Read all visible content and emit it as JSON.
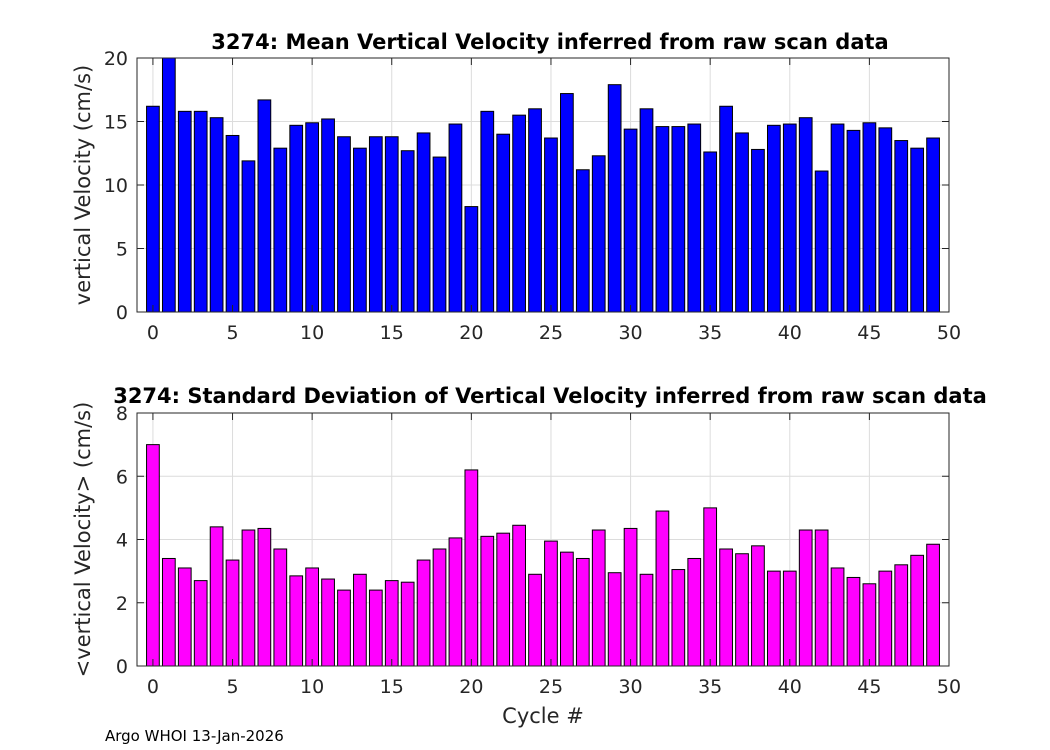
{
  "footer": "Argo WHOI 13-Jan-2026",
  "chart_data": [
    {
      "type": "bar",
      "title": "3274: Mean Vertical Velocity inferred from raw scan data",
      "xlabel": "",
      "ylabel": "vertical Velocity (cm/s)",
      "xlim": [
        -1,
        50
      ],
      "ylim": [
        0,
        20
      ],
      "xticks": [
        0,
        5,
        10,
        15,
        20,
        25,
        30,
        35,
        40,
        45,
        50
      ],
      "yticks": [
        0,
        5,
        10,
        15,
        20
      ],
      "grid": true,
      "color": "#0000ff",
      "x": [
        0,
        1,
        2,
        3,
        4,
        5,
        6,
        7,
        8,
        9,
        10,
        11,
        12,
        13,
        14,
        15,
        16,
        17,
        18,
        19,
        20,
        21,
        22,
        23,
        24,
        25,
        26,
        27,
        28,
        29,
        30,
        31,
        32,
        33,
        34,
        35,
        36,
        37,
        38,
        39,
        40,
        41,
        42,
        43,
        44,
        45,
        46,
        47,
        48,
        49
      ],
      "values": [
        16.2,
        20.0,
        15.8,
        15.8,
        15.3,
        13.9,
        11.9,
        16.7,
        12.9,
        14.7,
        14.9,
        15.2,
        13.8,
        12.9,
        13.8,
        13.8,
        12.7,
        14.1,
        12.2,
        14.8,
        8.3,
        15.8,
        14.0,
        15.5,
        16.0,
        13.7,
        17.2,
        11.2,
        12.3,
        17.9,
        14.4,
        16.0,
        14.6,
        14.6,
        14.8,
        12.6,
        16.2,
        14.1,
        12.8,
        14.7,
        14.8,
        15.3,
        11.1,
        14.8,
        14.3,
        14.9,
        14.5,
        13.5,
        12.9,
        13.7
      ]
    },
    {
      "type": "bar",
      "title": "3274: Standard Deviation of Vertical Velocity inferred from raw scan data",
      "xlabel": "Cycle #",
      "ylabel": "<vertical Velocity> (cm/s)",
      "xlim": [
        -1,
        50
      ],
      "ylim": [
        0,
        8
      ],
      "xticks": [
        0,
        5,
        10,
        15,
        20,
        25,
        30,
        35,
        40,
        45,
        50
      ],
      "yticks": [
        0,
        2,
        4,
        6,
        8
      ],
      "grid": true,
      "color": "#ff00ff",
      "x": [
        0,
        1,
        2,
        3,
        4,
        5,
        6,
        7,
        8,
        9,
        10,
        11,
        12,
        13,
        14,
        15,
        16,
        17,
        18,
        19,
        20,
        21,
        22,
        23,
        24,
        25,
        26,
        27,
        28,
        29,
        30,
        31,
        32,
        33,
        34,
        35,
        36,
        37,
        38,
        39,
        40,
        41,
        42,
        43,
        44,
        45,
        46,
        47,
        48,
        49
      ],
      "values": [
        7.0,
        3.4,
        3.1,
        2.7,
        4.4,
        3.35,
        4.3,
        4.35,
        3.7,
        2.85,
        3.1,
        2.75,
        2.4,
        2.9,
        2.4,
        2.7,
        2.65,
        3.35,
        3.7,
        4.05,
        6.2,
        4.1,
        4.2,
        4.45,
        2.9,
        3.95,
        3.6,
        3.4,
        4.3,
        2.95,
        4.35,
        2.9,
        4.9,
        3.05,
        3.4,
        5.0,
        3.7,
        3.55,
        3.8,
        3.0,
        3.0,
        4.3,
        4.3,
        3.1,
        2.8,
        2.6,
        3.0,
        3.2,
        3.5,
        3.85
      ]
    }
  ]
}
